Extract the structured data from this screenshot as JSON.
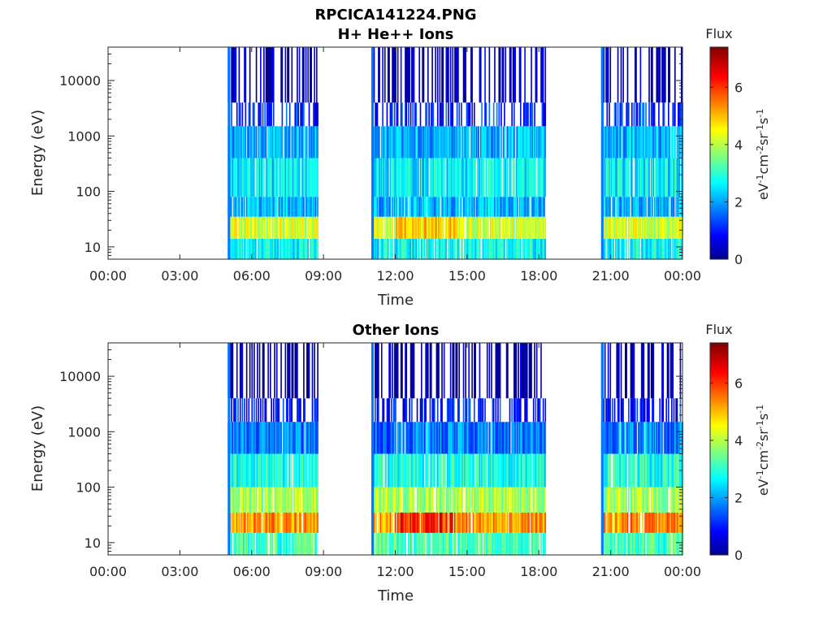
{
  "figure": {
    "title_line1": "RPCICA141224.PNG"
  },
  "chart_data": [
    {
      "type": "heatmap",
      "title": "H+ He++ Ions",
      "xlabel": "Time",
      "ylabel": "Energy (eV)",
      "x_range_hours": [
        0,
        24
      ],
      "x_ticks": [
        "00:00",
        "03:00",
        "06:00",
        "09:00",
        "12:00",
        "15:00",
        "18:00",
        "21:00",
        "00:00"
      ],
      "y_scale": "log",
      "y_range": [
        6,
        40000
      ],
      "y_ticks": [
        10,
        100,
        1000,
        10000
      ],
      "y_tick_labels": [
        "10",
        "100",
        "1000",
        "10000"
      ],
      "colorbar": {
        "title": "Flux",
        "unit_label": "eV-1cm-2sr-1s-1",
        "range": [
          0,
          7.4
        ],
        "ticks": [
          0,
          2,
          4,
          6
        ],
        "colormap": "jet"
      },
      "data_intervals_hours": [
        [
          5.0,
          8.75
        ],
        [
          11.0,
          18.25
        ],
        [
          20.6,
          24.0
        ]
      ],
      "bands": [
        {
          "energy_range": [
            6,
            14
          ],
          "flux": 2.8
        },
        {
          "energy_range": [
            14,
            35
          ],
          "flux": 4.3
        },
        {
          "energy_range": [
            35,
            80
          ],
          "flux": 2.2
        },
        {
          "energy_range": [
            80,
            400
          ],
          "flux": 2.7
        },
        {
          "energy_range": [
            400,
            1500
          ],
          "flux": 2.2
        },
        {
          "energy_range": [
            1500,
            4000
          ],
          "flux": 1.2
        },
        {
          "energy_range": [
            4000,
            40000
          ],
          "flux": 0.4
        }
      ],
      "peak": {
        "hours": [
          12.0,
          14.5
        ],
        "energy_range": [
          18,
          35
        ],
        "flux": 5.0
      }
    },
    {
      "type": "heatmap",
      "title": "Other Ions",
      "xlabel": "Time",
      "ylabel": "Energy (eV)",
      "x_range_hours": [
        0,
        24
      ],
      "x_ticks": [
        "00:00",
        "03:00",
        "06:00",
        "09:00",
        "12:00",
        "15:00",
        "18:00",
        "21:00",
        "00:00"
      ],
      "y_scale": "log",
      "y_range": [
        6,
        40000
      ],
      "y_ticks": [
        10,
        100,
        1000,
        10000
      ],
      "y_tick_labels": [
        "10",
        "100",
        "1000",
        "10000"
      ],
      "colorbar": {
        "title": "Flux",
        "unit_label": "eV-1cm-2sr-1s-1",
        "range": [
          0,
          7.4
        ],
        "ticks": [
          0,
          2,
          4,
          6
        ],
        "colormap": "jet"
      },
      "data_intervals_hours": [
        [
          5.0,
          8.75
        ],
        [
          11.0,
          18.25
        ],
        [
          20.6,
          24.0
        ]
      ],
      "bands": [
        {
          "energy_range": [
            6,
            15
          ],
          "flux": 3.3
        },
        {
          "energy_range": [
            15,
            35
          ],
          "flux": 5.4
        },
        {
          "energy_range": [
            35,
            100
          ],
          "flux": 4.0
        },
        {
          "energy_range": [
            100,
            400
          ],
          "flux": 3.0
        },
        {
          "energy_range": [
            400,
            1500
          ],
          "flux": 1.8
        },
        {
          "energy_range": [
            1500,
            4000
          ],
          "flux": 1.0
        },
        {
          "energy_range": [
            4000,
            40000
          ],
          "flux": 0.3
        }
      ],
      "peak": {
        "hours": [
          12.0,
          14.5
        ],
        "energy_range": [
          18,
          35
        ],
        "flux": 6.2
      }
    }
  ]
}
